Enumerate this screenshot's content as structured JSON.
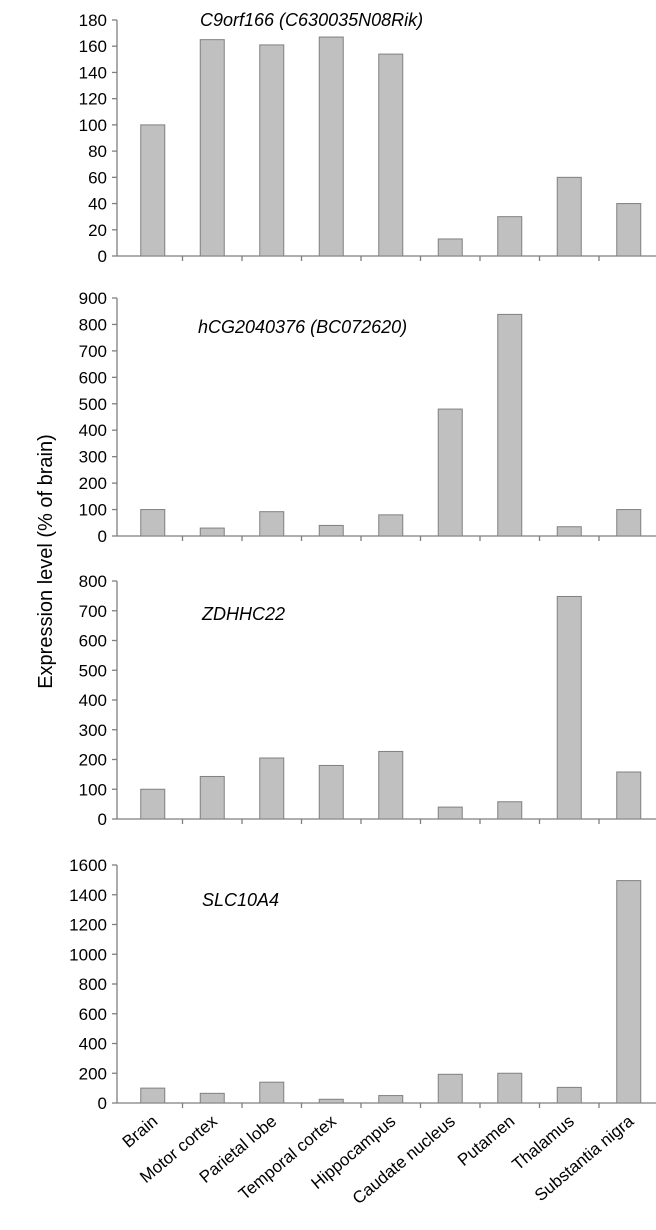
{
  "chart_data": {
    "type": "bar",
    "ylabel": "Expression level (% of brain)",
    "xlabel": "",
    "categories": [
      "Brain",
      "Motor cortex",
      "Parietal lobe",
      "Temporal cortex",
      "Hippocampus",
      "Caudate nucleus",
      "Putamen",
      "Thalamus",
      "Substantia nigra"
    ],
    "bar_color": "#c0c0c0",
    "grid": false,
    "panels": [
      {
        "title": "C9orf166 (C630035N08Rik)",
        "ylim": [
          0,
          180
        ],
        "yticks": [
          "0",
          "20",
          "40",
          "60",
          "80",
          "100",
          "120",
          "140",
          "160",
          "180"
        ],
        "values": [
          100,
          165,
          161,
          167,
          154,
          13,
          30,
          60,
          40
        ]
      },
      {
        "title": "hCG2040376 (BC072620)",
        "ylim": [
          0,
          900
        ],
        "yticks": [
          "0",
          "100",
          "200",
          "300",
          "400",
          "500",
          "600",
          "700",
          "800",
          "900"
        ],
        "values": [
          100,
          30,
          92,
          40,
          80,
          480,
          838,
          35,
          100
        ]
      },
      {
        "title": "ZDHHC22",
        "ylim": [
          0,
          800
        ],
        "yticks": [
          "0",
          "100",
          "200",
          "300",
          "400",
          "500",
          "600",
          "700",
          "800"
        ],
        "values": [
          100,
          143,
          205,
          180,
          227,
          40,
          58,
          748,
          158
        ]
      },
      {
        "title": "SLC10A4",
        "ylim": [
          0,
          1600
        ],
        "yticks": [
          "0",
          "200",
          "400",
          "600",
          "800",
          "1000",
          "1200",
          "1400",
          "1600"
        ],
        "values": [
          100,
          65,
          140,
          25,
          50,
          193,
          200,
          105,
          1495
        ]
      }
    ]
  }
}
